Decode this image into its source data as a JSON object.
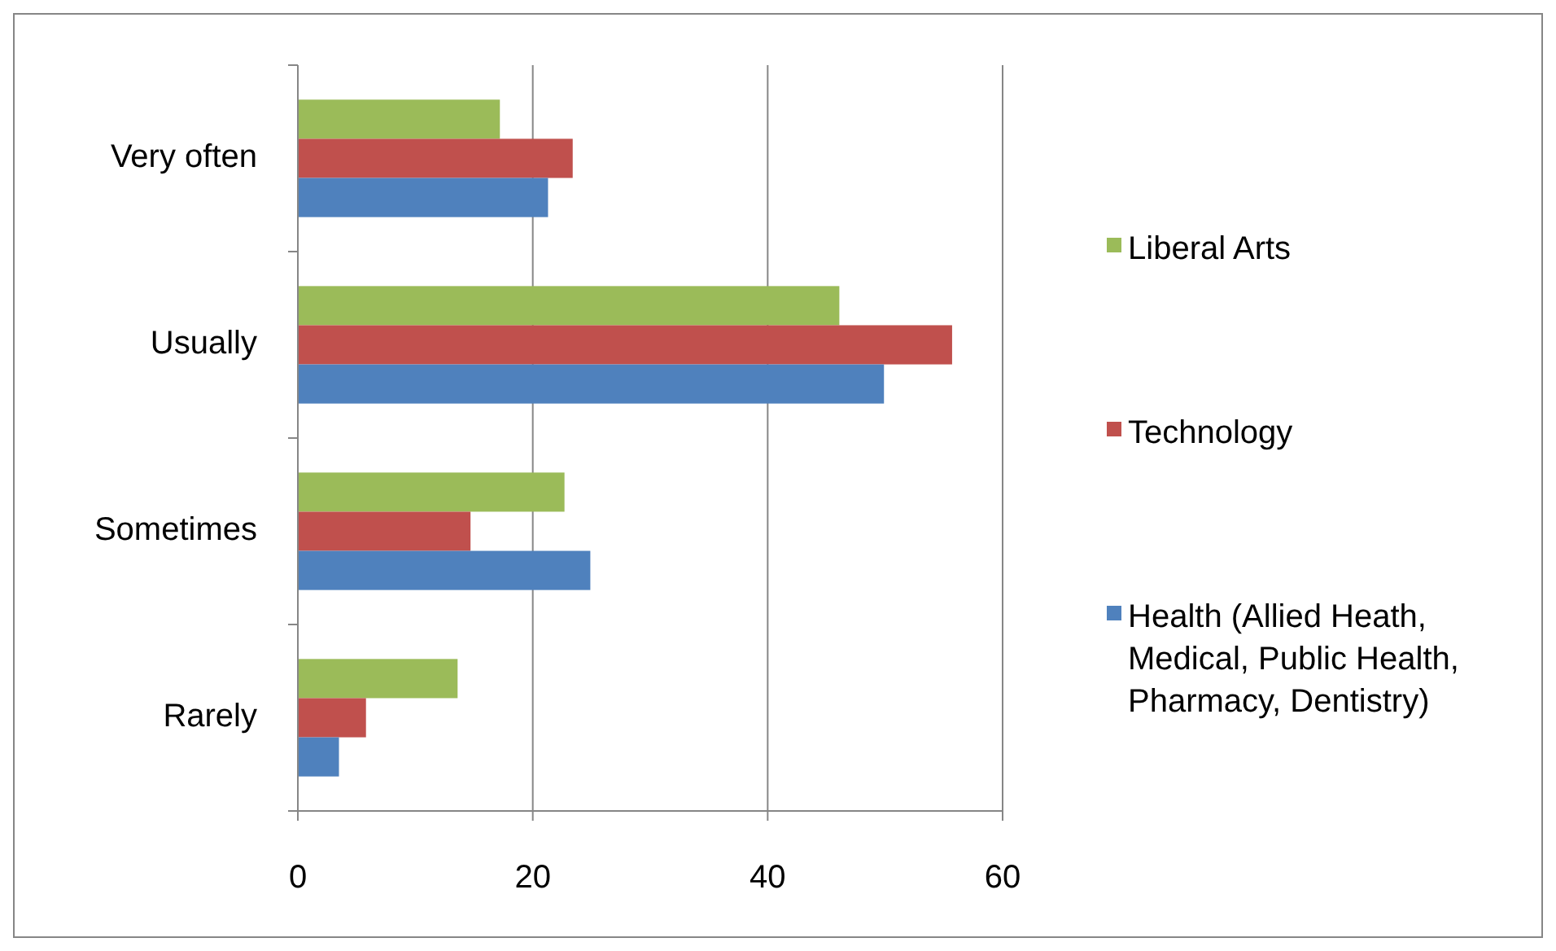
{
  "chart_data": {
    "type": "bar",
    "orientation": "horizontal",
    "categories": [
      "Very often",
      "Usually",
      "Sometimes",
      "Rarely"
    ],
    "series": [
      {
        "name": "Liberal Arts",
        "color": "#9bbb59",
        "values": [
          17.2,
          46.1,
          22.7,
          13.6
        ]
      },
      {
        "name": "Technology",
        "color": "#c0504d",
        "values": [
          23.4,
          55.7,
          14.7,
          5.8
        ]
      },
      {
        "name": "Health (Allied Heath, Medical, Public Health, Pharmacy, Dentistry)",
        "color": "#4f81bd",
        "values": [
          21.3,
          49.9,
          24.9,
          3.5
        ]
      }
    ],
    "xlim": [
      0,
      60
    ],
    "xticks": [
      0,
      20,
      40,
      60
    ],
    "grid": "x",
    "legend": "right"
  }
}
